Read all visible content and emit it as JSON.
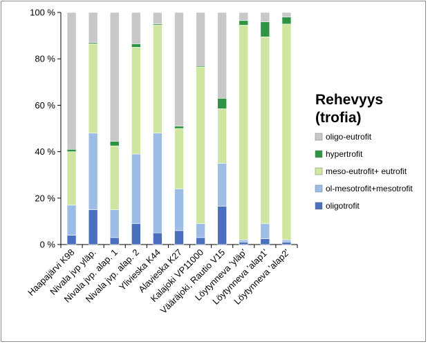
{
  "chart_data": {
    "type": "bar",
    "stacked": true,
    "percent": true,
    "categories": [
      "Haapajärvi K98",
      "Nivala jvp yläp.",
      "Nivala jvp. alap. 1",
      "Nivala jvp. alap. 2",
      "Ylivieska K44",
      "Alavieska K27",
      "Kalajoki VP11000",
      "Vääräjoki, Rautio V15",
      "Löytynneva 'yläp'",
      "Löytynneva 'alap1'",
      "Löytynneva 'alap2'"
    ],
    "series": [
      {
        "name": "oligotrofit",
        "values": [
          4,
          15,
          3,
          9,
          5,
          6,
          3,
          16.5,
          1,
          2.5,
          1
        ],
        "color": "#4a6fbf"
      },
      {
        "name": "ol-mesotrofit+mesotrofit",
        "values": [
          13,
          33,
          12,
          30,
          43,
          18,
          6,
          18.5,
          1,
          6.5,
          1
        ],
        "color": "#9dbde6"
      },
      {
        "name": "meso-eutrofit+ eutrofit",
        "values": [
          23,
          38.5,
          27.5,
          46,
          46.5,
          26,
          67.5,
          23.5,
          92.5,
          80.5,
          93
        ],
        "color": "#cfe6a0"
      },
      {
        "name": "hypertrofit",
        "values": [
          1,
          0.5,
          2,
          1.5,
          0.5,
          1,
          0.5,
          4.5,
          2,
          6.5,
          3
        ],
        "color": "#2e9444"
      },
      {
        "name": "oligo-eutrofit",
        "values": [
          59,
          13,
          55.5,
          13.5,
          5,
          49,
          23,
          37,
          3.5,
          4,
          2
        ],
        "color": "#c8c8c8"
      }
    ],
    "y_ticks": [
      "0 %",
      "20 %",
      "40 %",
      "60 %",
      "80 %",
      "100 %"
    ],
    "ylim": [
      0,
      100
    ],
    "grid": false,
    "legend": {
      "title_line1": "Rehevyys",
      "title_line2": "(trofia)",
      "placement": "right",
      "order": [
        "oligo-eutrofit",
        "hypertrofit",
        "meso-eutrofit+ eutrofit",
        "ol-mesotrofit+mesotrofit",
        "oligotrofit"
      ]
    }
  }
}
